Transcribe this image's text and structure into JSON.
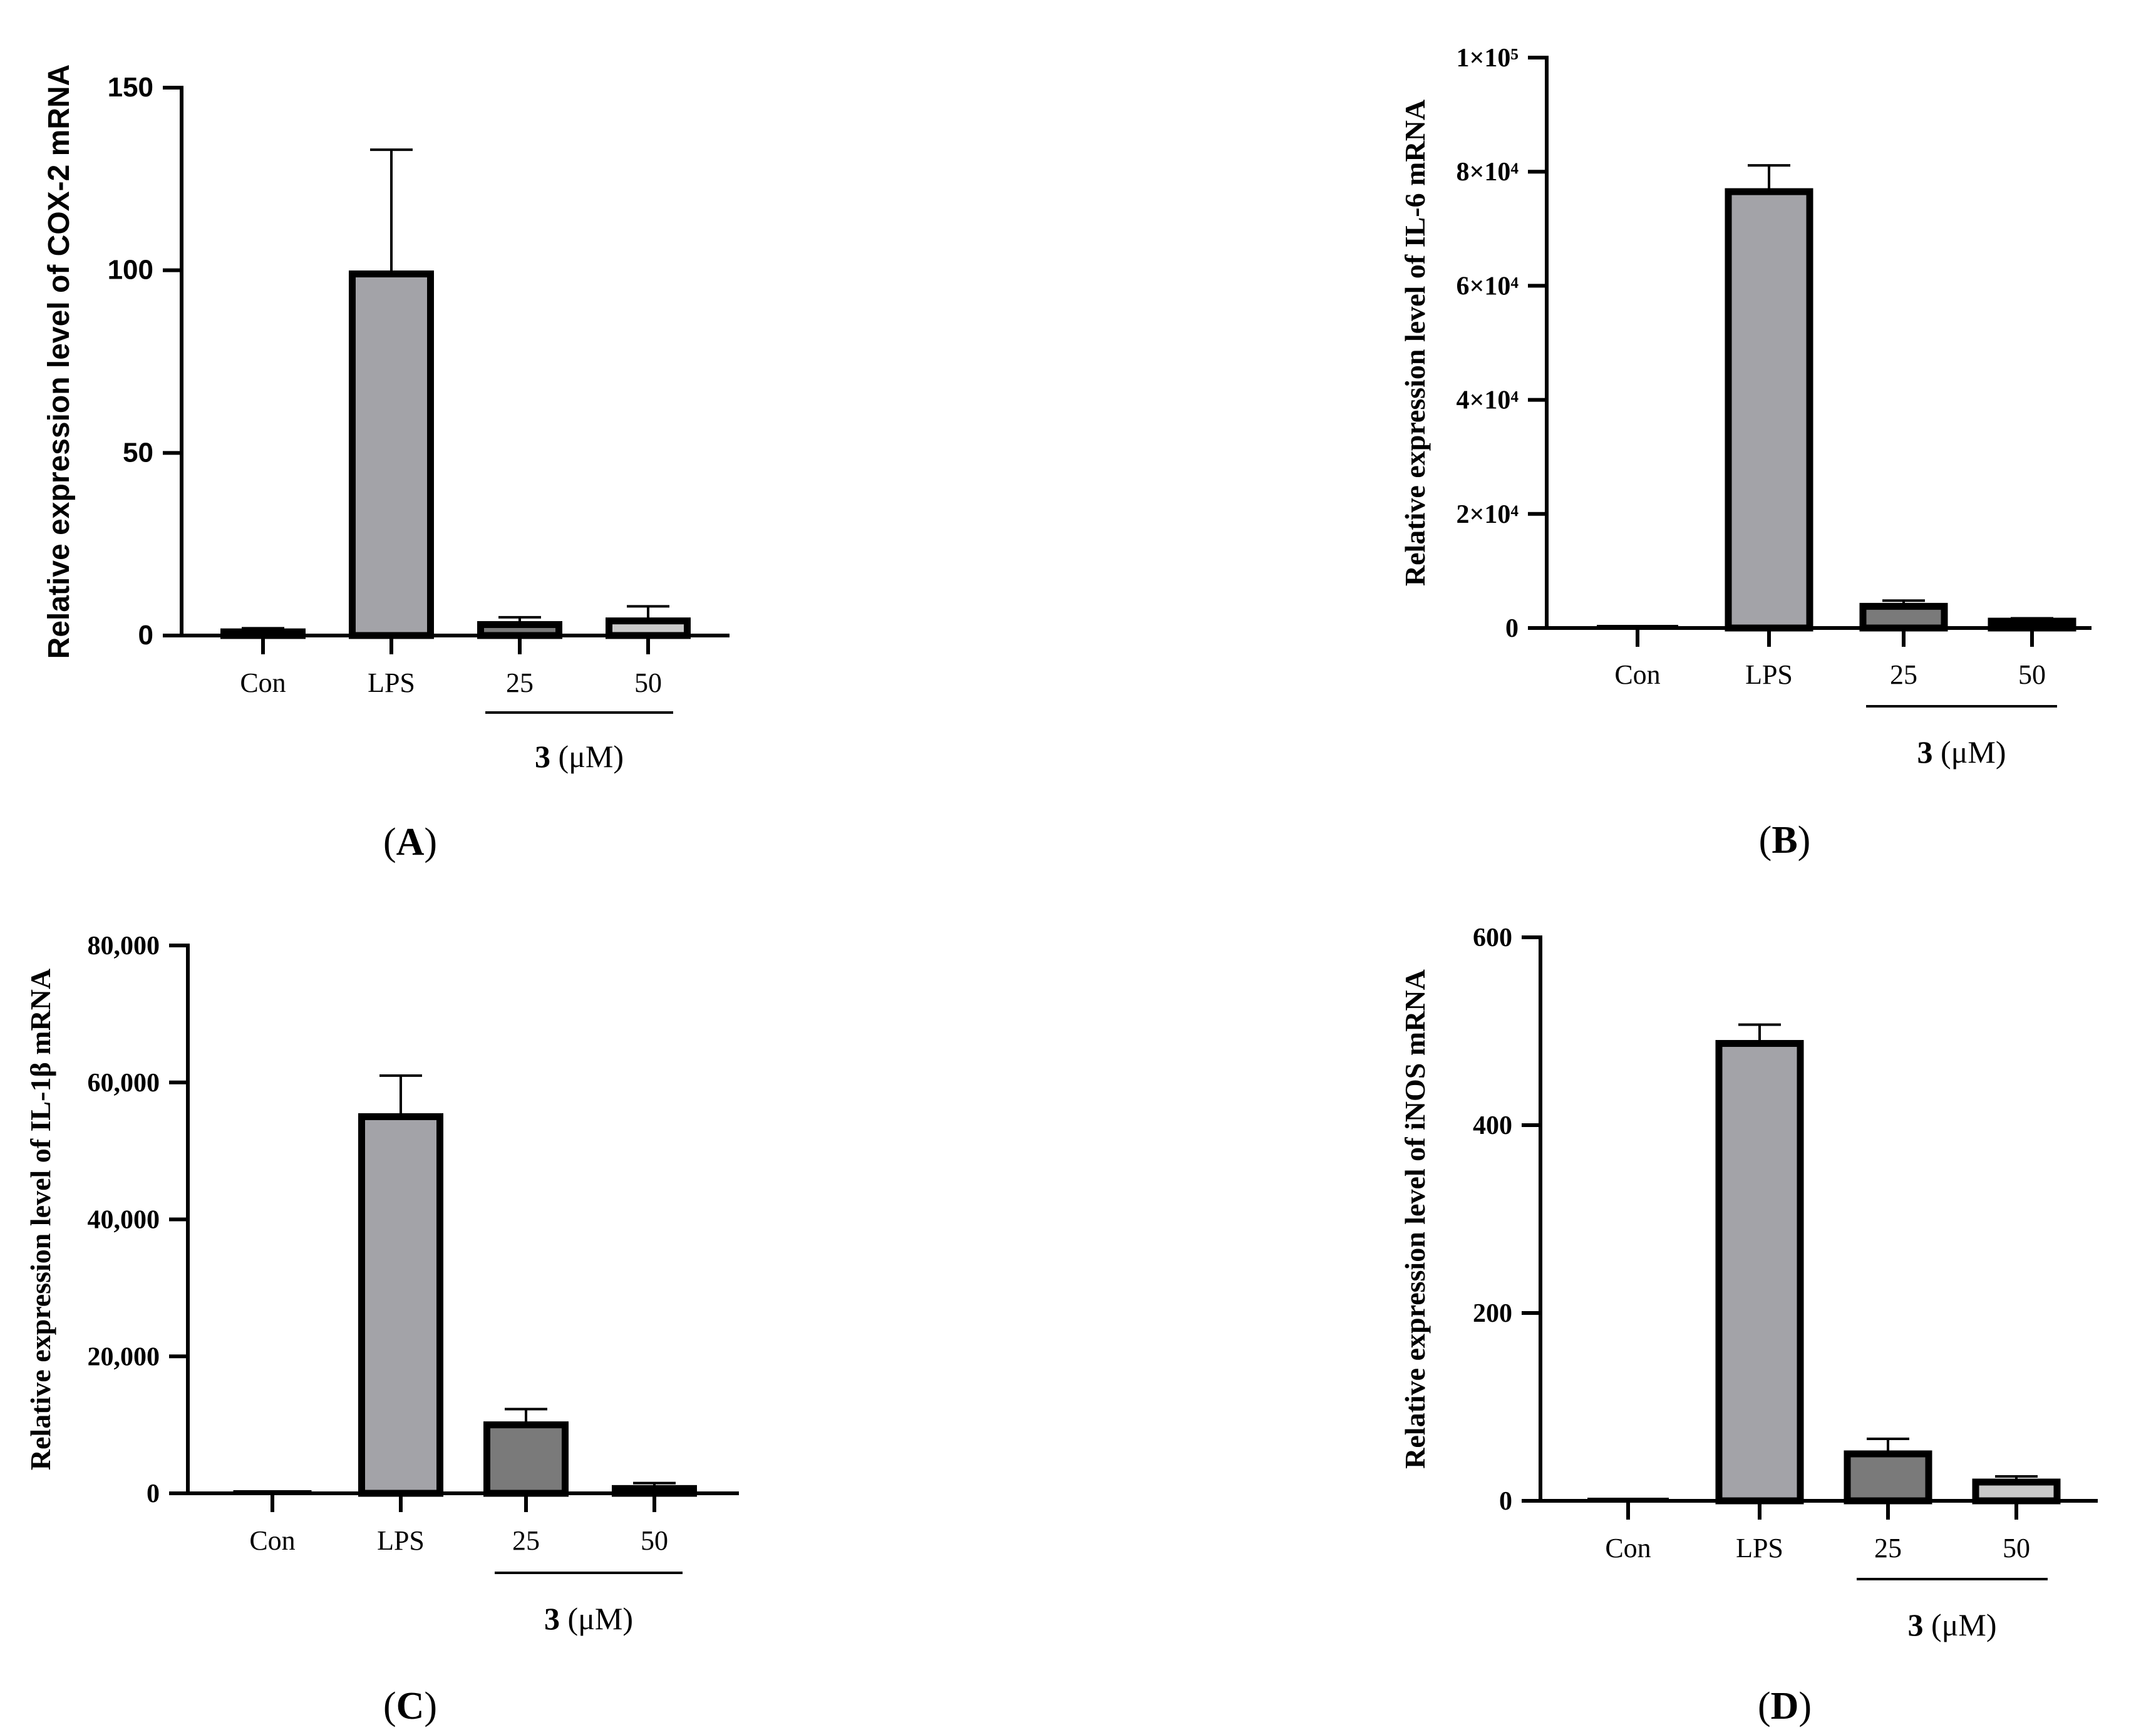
{
  "colors": {
    "axis": "#000000",
    "lps_bar": "#a3a3a8",
    "treat25_bar": "#7a7a7a",
    "treat50_bar": "#c9c9c9",
    "con_bar": "#d6d6d6"
  },
  "chart_data": [
    {
      "panel": "A",
      "panel_label": "A",
      "type": "bar",
      "title": "",
      "ylabel": "Relative expression level of COX-2 mRNA",
      "categories": [
        "Con",
        "LPS",
        "25",
        "50"
      ],
      "values": [
        1,
        99,
        3,
        4
      ],
      "errors": [
        1,
        34,
        2,
        4
      ],
      "ylim": [
        0,
        150
      ],
      "yticks": [
        0,
        50,
        100,
        150
      ],
      "ytick_labels": [
        "0",
        "50",
        "100",
        "150"
      ],
      "group_label_bold": "3",
      "group_label_unit": " (μM)",
      "tick_font": "sans",
      "grid": false
    },
    {
      "panel": "B",
      "panel_label": "B",
      "type": "bar",
      "title": "",
      "ylabel": "Relative expression level of IL-6 mRNA",
      "categories": [
        "Con",
        "LPS",
        "25",
        "50"
      ],
      "values": [
        0,
        76500,
        3800,
        1200
      ],
      "errors": [
        0,
        4600,
        1000,
        500
      ],
      "ylim": [
        0,
        100000
      ],
      "yticks": [
        0,
        20000,
        40000,
        60000,
        80000,
        100000
      ],
      "ytick_labels": [
        "0",
        "2×10⁴",
        "4×10⁴",
        "6×10⁴",
        "8×10⁴",
        "1×10⁵"
      ],
      "group_label_bold": "3",
      "group_label_unit": " (μM)",
      "tick_font": "serif",
      "grid": false
    },
    {
      "panel": "C",
      "panel_label": "C",
      "type": "bar",
      "title": "",
      "ylabel": "Relative expression level of IL-1β mRNA",
      "categories": [
        "Con",
        "LPS",
        "25",
        "50"
      ],
      "values": [
        0,
        55000,
        10000,
        700
      ],
      "errors": [
        0,
        6000,
        2300,
        800
      ],
      "ylim": [
        0,
        80000
      ],
      "yticks": [
        0,
        20000,
        40000,
        60000,
        80000
      ],
      "ytick_labels": [
        "0",
        "20,000",
        "40,000",
        "60,000",
        "80,000"
      ],
      "group_label_bold": "3",
      "group_label_unit": " (μM)",
      "tick_font": "serif",
      "grid": false
    },
    {
      "panel": "D",
      "panel_label": "D",
      "type": "bar",
      "title": "",
      "ylabel": "Relative expression level of iNOS mRNA",
      "categories": [
        "Con",
        "LPS",
        "25",
        "50"
      ],
      "values": [
        0,
        487,
        50,
        20
      ],
      "errors": [
        0,
        20,
        16,
        6
      ],
      "ylim": [
        0,
        600
      ],
      "yticks": [
        0,
        200,
        400,
        600
      ],
      "ytick_labels": [
        "0",
        "200",
        "400",
        "600"
      ],
      "group_label_bold": "3",
      "group_label_unit": " (μM)",
      "tick_font": "serif",
      "grid": false
    }
  ]
}
